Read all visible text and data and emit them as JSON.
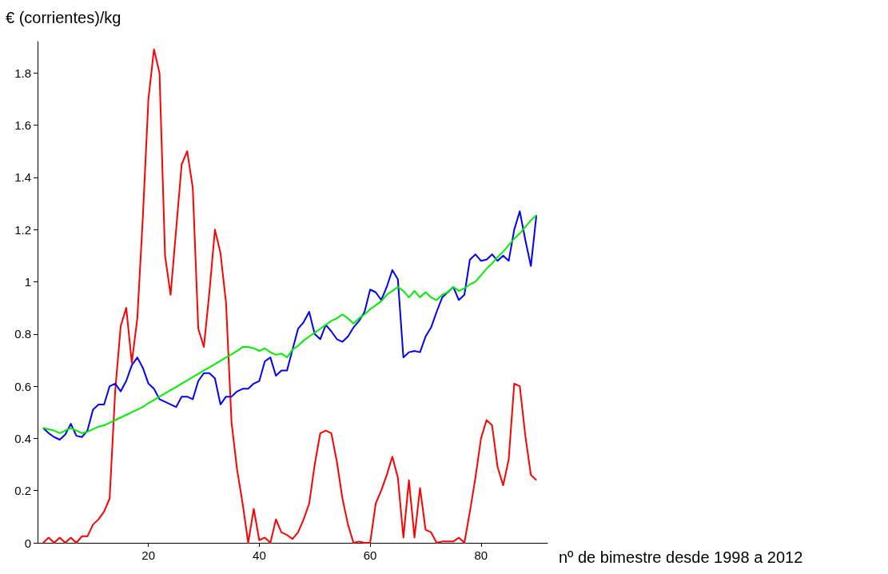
{
  "chart_data": {
    "type": "line",
    "xlabel": "nº de bimestre desde 1998 a 2012",
    "ylabel": "€ (corrientes)/kg",
    "x": [
      1,
      2,
      3,
      4,
      5,
      6,
      7,
      8,
      9,
      10,
      11,
      12,
      13,
      14,
      15,
      16,
      17,
      18,
      19,
      20,
      21,
      22,
      23,
      24,
      25,
      26,
      27,
      28,
      29,
      30,
      31,
      32,
      33,
      34,
      35,
      36,
      37,
      38,
      39,
      40,
      41,
      42,
      43,
      44,
      45,
      46,
      47,
      48,
      49,
      50,
      51,
      52,
      53,
      54,
      55,
      56,
      57,
      58,
      59,
      60,
      61,
      62,
      63,
      64,
      65,
      66,
      67,
      68,
      69,
      70,
      71,
      72,
      73,
      74,
      75,
      76,
      77,
      78,
      79,
      80,
      81,
      82,
      83,
      84,
      85,
      86,
      87,
      88,
      89,
      90
    ],
    "series": [
      {
        "color": "#ff0000",
        "values": [
          0,
          0.02,
          0,
          0.02,
          0,
          0.02,
          0,
          0.025,
          0.025,
          0.07,
          0.09,
          0.12,
          0.17,
          0.58,
          0.83,
          0.9,
          0.69,
          0.86,
          1.25,
          1.7,
          1.89,
          1.8,
          1.1,
          0.95,
          1.2,
          1.45,
          1.5,
          1.36,
          0.82,
          0.75,
          0.96,
          1.2,
          1.11,
          0.92,
          0.46,
          0.28,
          0.15,
          0,
          0.13,
          0.01,
          0.02,
          0,
          0.09,
          0.04,
          0.03,
          0.015,
          0.04,
          0.09,
          0.15,
          0.3,
          0.42,
          0.43,
          0.42,
          0.31,
          0.17,
          0.07,
          0,
          0.005,
          0,
          0,
          0.15,
          0.2,
          0.26,
          0.33,
          0.25,
          0.02,
          0.24,
          0.02,
          0.21,
          0.05,
          0.04,
          0,
          0.005,
          0.005,
          0.005,
          0.02,
          0,
          0.12,
          0.25,
          0.4,
          0.47,
          0.45,
          0.29,
          0.22,
          0.32,
          0.61,
          0.6,
          0.41,
          0.26,
          0.24
        ]
      },
      {
        "color": "#0000ff",
        "values": [
          0.44,
          0.42,
          0.405,
          0.395,
          0.415,
          0.456,
          0.41,
          0.405,
          0.43,
          0.51,
          0.53,
          0.53,
          0.6,
          0.61,
          0.58,
          0.62,
          0.68,
          0.71,
          0.67,
          0.61,
          0.59,
          0.55,
          0.54,
          0.53,
          0.52,
          0.56,
          0.56,
          0.55,
          0.62,
          0.65,
          0.65,
          0.63,
          0.53,
          0.56,
          0.56,
          0.58,
          0.59,
          0.59,
          0.61,
          0.62,
          0.695,
          0.71,
          0.64,
          0.66,
          0.66,
          0.74,
          0.82,
          0.845,
          0.885,
          0.8,
          0.78,
          0.835,
          0.81,
          0.78,
          0.77,
          0.79,
          0.825,
          0.85,
          0.885,
          0.97,
          0.96,
          0.93,
          0.98,
          1.045,
          1.01,
          0.71,
          0.73,
          0.735,
          0.73,
          0.79,
          0.825,
          0.885,
          0.94,
          0.96,
          0.98,
          0.93,
          0.95,
          1.085,
          1.105,
          1.08,
          1.085,
          1.105,
          1.08,
          1.1,
          1.08,
          1.2,
          1.27,
          1.16,
          1.06,
          1.255
        ]
      },
      {
        "color": "#00ee00",
        "values": [
          0.44,
          0.435,
          0.43,
          0.42,
          0.43,
          0.44,
          0.43,
          0.42,
          0.425,
          0.435,
          0.445,
          0.45,
          0.46,
          0.47,
          0.48,
          0.49,
          0.5,
          0.51,
          0.52,
          0.535,
          0.547,
          0.56,
          0.572,
          0.585,
          0.597,
          0.61,
          0.622,
          0.635,
          0.647,
          0.66,
          0.672,
          0.685,
          0.697,
          0.71,
          0.722,
          0.735,
          0.75,
          0.75,
          0.745,
          0.735,
          0.745,
          0.73,
          0.72,
          0.725,
          0.71,
          0.74,
          0.755,
          0.775,
          0.79,
          0.805,
          0.82,
          0.835,
          0.85,
          0.86,
          0.875,
          0.86,
          0.84,
          0.86,
          0.875,
          0.895,
          0.91,
          0.925,
          0.95,
          0.965,
          0.98,
          0.965,
          0.94,
          0.965,
          0.94,
          0.96,
          0.94,
          0.93,
          0.95,
          0.96,
          0.98,
          0.965,
          0.975,
          0.99,
          1.0,
          1.025,
          1.05,
          1.07,
          1.095,
          1.115,
          1.14,
          1.165,
          1.185,
          1.21,
          1.235,
          1.255
        ]
      }
    ],
    "xlim": [
      0,
      92
    ],
    "xticks": [
      20,
      40,
      60,
      80
    ],
    "ylim": [
      0,
      1.92
    ],
    "yticks": [
      0,
      0.2,
      0.4,
      0.6,
      0.8,
      1,
      1.2,
      1.4,
      1.6,
      1.8
    ],
    "grid": false,
    "marker": "none",
    "line_style": "solid"
  }
}
